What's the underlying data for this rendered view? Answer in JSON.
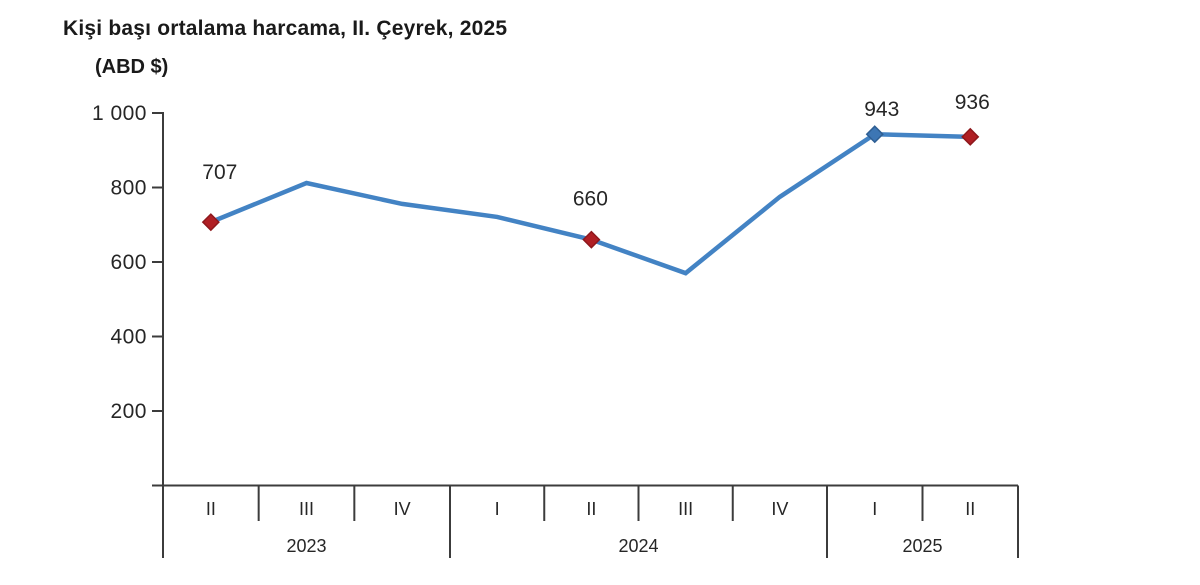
{
  "header": {
    "title": "Kişi başı ortalama harcama, II. Çeyrek, 2025",
    "unit_label": "(ABD $)"
  },
  "colors": {
    "line": "#4383C4",
    "marker_red": "#B01F24",
    "marker_red_stroke": "#8E181C",
    "marker_blue": "#3D76B4",
    "marker_blue_stroke": "#2E5E93",
    "axis": "#3C3C3C",
    "text": "#262626"
  },
  "chart_data": {
    "type": "line",
    "title": "Kişi başı ortalama harcama, II. Çeyrek, 2025",
    "ylabel": "(ABD $)",
    "ylim": [
      0,
      1000
    ],
    "grid": false,
    "legend": "none",
    "yticks": [
      {
        "value": 200,
        "label": "200"
      },
      {
        "value": 400,
        "label": "400"
      },
      {
        "value": 600,
        "label": "600"
      },
      {
        "value": 800,
        "label": "800"
      },
      {
        "value": 1000,
        "label": "1 000"
      }
    ],
    "x_groups": [
      {
        "year": "2023",
        "quarters": [
          "II",
          "III",
          "IV"
        ]
      },
      {
        "year": "2024",
        "quarters": [
          "I",
          "II",
          "III",
          "IV"
        ]
      },
      {
        "year": "2025",
        "quarters": [
          "I",
          "II"
        ]
      }
    ],
    "points": [
      {
        "x": "2023 II",
        "value": 707,
        "label": "707",
        "marker": "red"
      },
      {
        "x": "2023 III",
        "value": 812
      },
      {
        "x": "2023 IV",
        "value": 756
      },
      {
        "x": "2024 I",
        "value": 721
      },
      {
        "x": "2024 II",
        "value": 660,
        "label": "660",
        "marker": "red"
      },
      {
        "x": "2024 III",
        "value": 570
      },
      {
        "x": "2024 IV",
        "value": 775
      },
      {
        "x": "2025 I",
        "value": 943,
        "label": "943",
        "marker": "blue"
      },
      {
        "x": "2025 II",
        "value": 936,
        "label": "936",
        "marker": "red"
      }
    ]
  }
}
